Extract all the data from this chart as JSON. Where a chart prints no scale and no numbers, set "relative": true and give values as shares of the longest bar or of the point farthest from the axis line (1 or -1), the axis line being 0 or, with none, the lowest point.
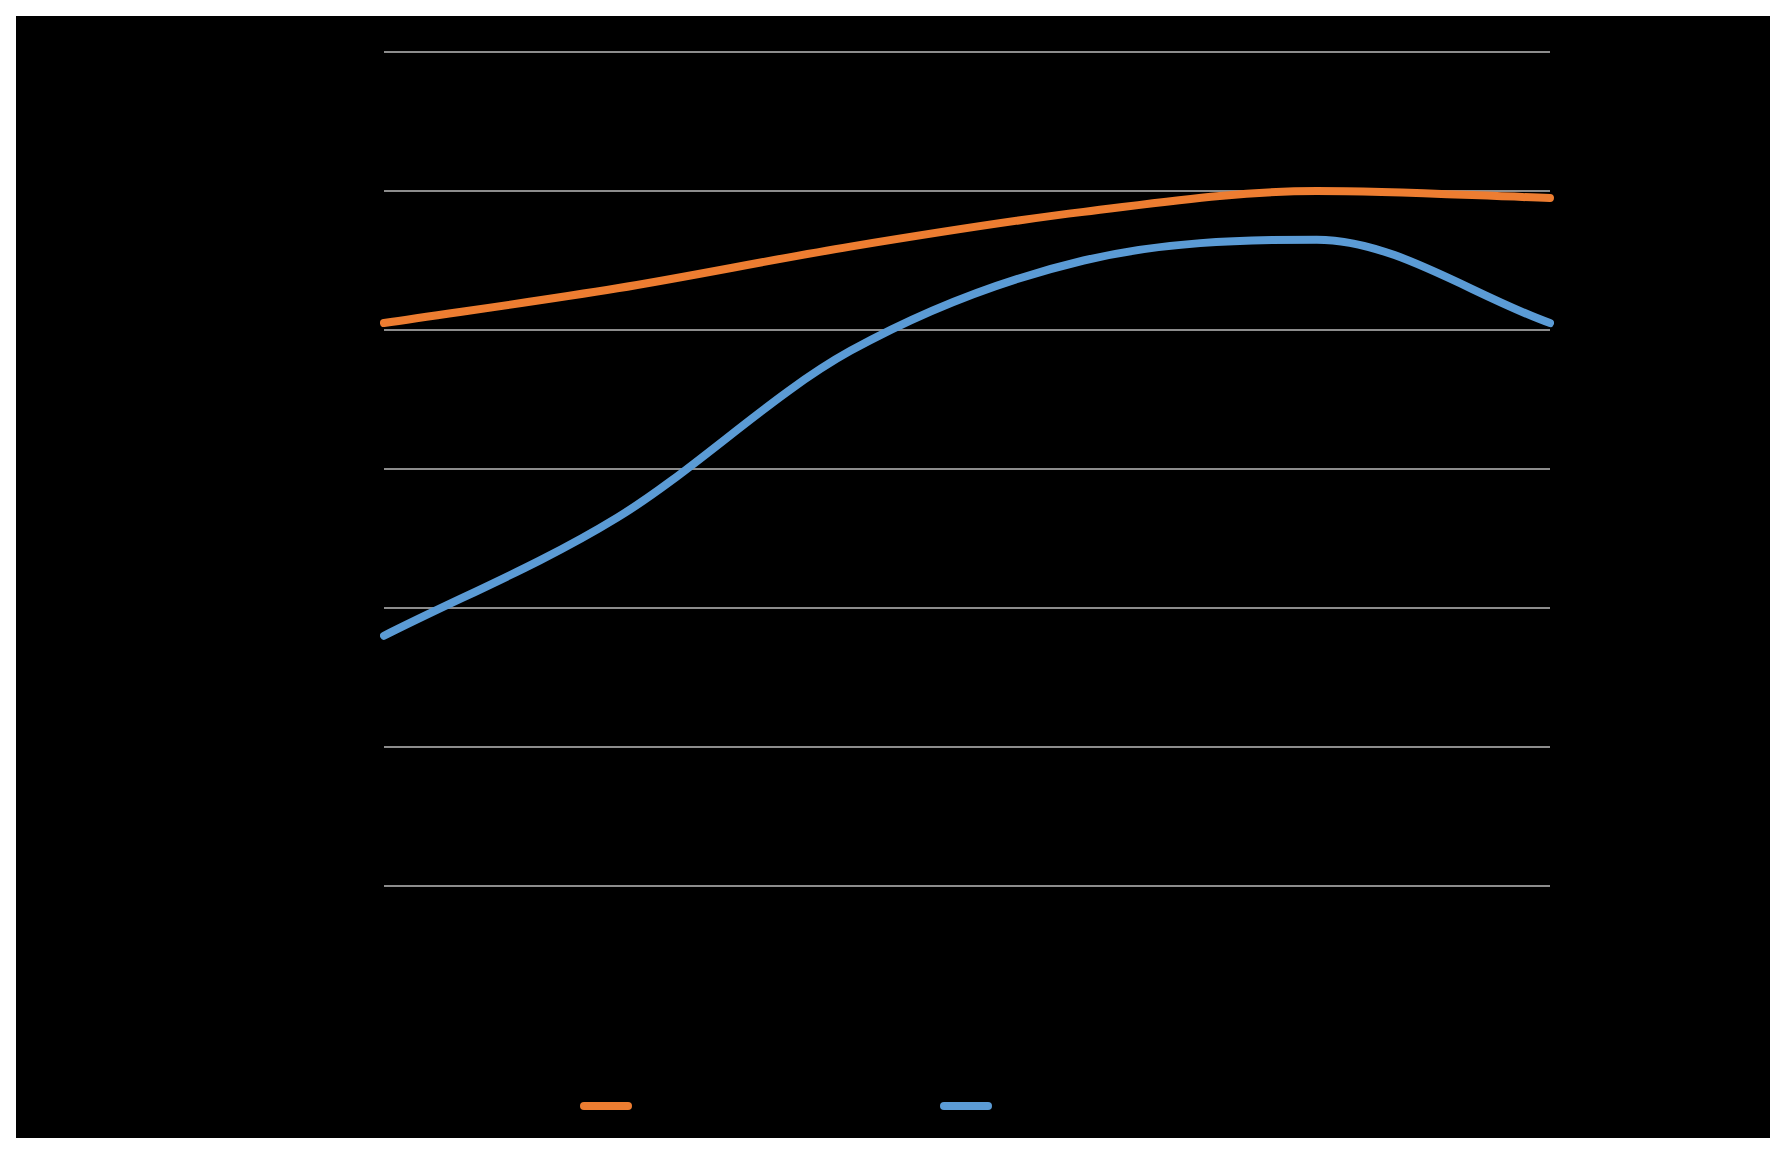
{
  "chart_data": {
    "type": "line",
    "relative": true,
    "categories": [
      null,
      null,
      null,
      null,
      null,
      null
    ],
    "grid": "y",
    "marker": "none",
    "line_style": "solid",
    "series": [
      {
        "color": "#ed7d31",
        "values": [
          0.81,
          0.86,
          0.92,
          0.97,
          1,
          0.99
        ]
      },
      {
        "color": "#5b9bd5",
        "values": [
          0.36,
          0.53,
          0.77,
          0.9,
          0.93,
          0.81
        ]
      }
    ]
  }
}
